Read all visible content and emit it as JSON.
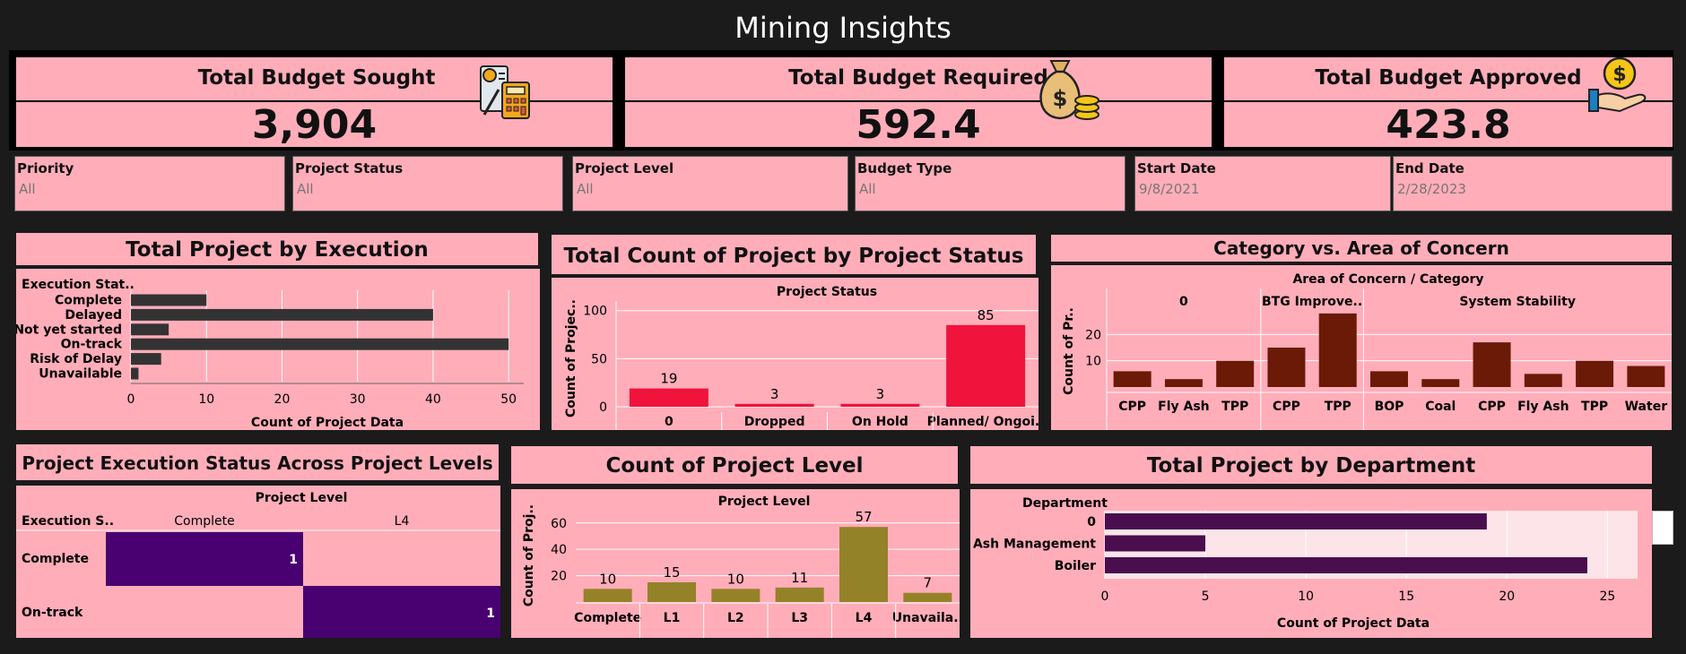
{
  "app_title": "Mining Insights",
  "kpis": [
    {
      "title": "Total Budget Sought",
      "value": "3,904",
      "icon": "calculator-icon"
    },
    {
      "title": "Total Budget Required",
      "value": "592.4",
      "icon": "money-bag-icon"
    },
    {
      "title": "Total Budget Approved",
      "value": "423.8",
      "icon": "hand-coin-icon"
    }
  ],
  "filters": [
    {
      "label": "Priority",
      "value": "All"
    },
    {
      "label": "Project Status",
      "value": "All"
    },
    {
      "label": "Project Level",
      "value": "All"
    },
    {
      "label": "Budget Type",
      "value": "All"
    },
    {
      "label": "Start Date",
      "value": "9/8/2021"
    },
    {
      "label": "End Date",
      "value": "2/28/2023"
    }
  ],
  "colors": {
    "page_bg": "#1b1b1b",
    "panel_bg": "#ffadb9",
    "bar_dark": "#333333",
    "bar_red": "#f0133b",
    "bar_brown": "#6b1a08",
    "bar_olive": "#948228",
    "bar_purple": "#4a0d4e",
    "heat_purple": "#490070"
  },
  "chart_data": [
    {
      "id": "execution",
      "type": "bar",
      "orientation": "horizontal",
      "title": "Total Project by Execution",
      "category_header": "Execution Stat..",
      "categories": [
        "Complete",
        "Delayed",
        "Not yet started",
        "On-track",
        "Risk of Delay",
        "Unavailable"
      ],
      "values": [
        10,
        40,
        5,
        50,
        4,
        1
      ],
      "xlabel": "Count of Project Data",
      "xlim": [
        0,
        52
      ],
      "xticks": [
        0,
        10,
        20,
        30,
        40,
        50
      ]
    },
    {
      "id": "status",
      "type": "bar",
      "title": "Total Count of Project by Project Status",
      "header": "Project Status",
      "categories": [
        "0",
        "Dropped",
        "On Hold",
        "Planned/ Ongoi.."
      ],
      "values": [
        19,
        3,
        3,
        85
      ],
      "ylabel": "Count of Projec..",
      "ylim": [
        0,
        110
      ],
      "yticks": [
        0,
        50,
        100
      ]
    },
    {
      "id": "category",
      "type": "bar",
      "title": "Category vs. Area of Concern",
      "header": "Area of Concern  /  Category",
      "groups": [
        {
          "name": "0",
          "categories": [
            "CPP",
            "Fly Ash",
            "TPP"
          ],
          "values": [
            6,
            3,
            10
          ]
        },
        {
          "name": "BTG Improve..",
          "categories": [
            "CPP",
            "TPP"
          ],
          "values": [
            15,
            28
          ]
        },
        {
          "name": "System Stability",
          "categories": [
            "BOP",
            "Coal",
            "CPP",
            "Fly Ash",
            "TPP",
            "Water"
          ],
          "values": [
            6,
            3,
            17,
            5,
            10,
            8
          ]
        }
      ],
      "ylabel": "Count of Pr..",
      "ylim": [
        0,
        30
      ],
      "yticks": [
        10,
        20
      ]
    },
    {
      "id": "heatmap",
      "type": "heatmap",
      "title": "Project Execution Status Across Project Levels",
      "column_header": "Project Level",
      "row_header": "Execution S..",
      "columns": [
        "Complete",
        "L4"
      ],
      "rows": [
        "Complete",
        "On-track"
      ],
      "cells": [
        [
          1,
          null
        ],
        [
          null,
          1
        ]
      ]
    },
    {
      "id": "level",
      "type": "bar",
      "title": "Count of Project Level",
      "header": "Project Level",
      "categories": [
        "Complete",
        "L1",
        "L2",
        "L3",
        "L4",
        "Unavaila.."
      ],
      "values": [
        10,
        15,
        10,
        11,
        57,
        7
      ],
      "ylabel": "Count of Proj..",
      "ylim": [
        0,
        68
      ],
      "yticks": [
        20,
        40,
        60
      ]
    },
    {
      "id": "department",
      "type": "bar",
      "orientation": "horizontal",
      "title": "Total Project by Department",
      "category_header": "Department",
      "categories": [
        "0",
        "Ash Management",
        "Boiler"
      ],
      "values": [
        19,
        5,
        24
      ],
      "xlabel": "Count of Project Data",
      "xlim": [
        0,
        26.5
      ],
      "xticks": [
        0,
        5,
        10,
        15,
        20,
        25
      ]
    }
  ]
}
